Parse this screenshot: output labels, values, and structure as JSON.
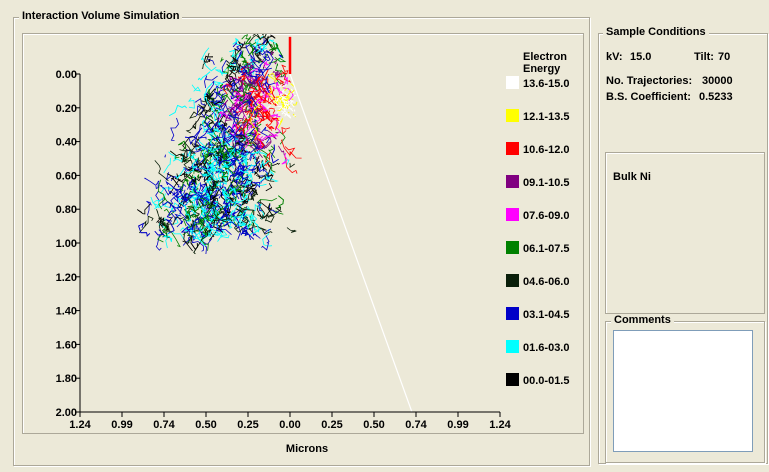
{
  "simulation": {
    "title": "Interaction Volume Simulation",
    "xlabel": "Microns",
    "legend_title_line1": "Electron",
    "legend_title_line2": "Energy"
  },
  "sample": {
    "title": "Sample Conditions",
    "kv_label": "kV:",
    "kv_value": "15.0",
    "tilt_label": "Tilt:",
    "tilt_value": "70",
    "trajectories_label": "No. Trajectories:",
    "trajectories_value": "30000",
    "bs_label": "B.S. Coefficient:",
    "bs_value": "0.5233"
  },
  "material": {
    "label": "Bulk Ni"
  },
  "comments": {
    "title": "Comments",
    "value": ""
  },
  "chart_data": {
    "type": "scatter",
    "title": "",
    "xlabel": "Microns",
    "ylabel": "",
    "x_ticks": [
      "1.24",
      "0.99",
      "0.74",
      "0.50",
      "0.25",
      "0.00",
      "0.25",
      "0.50",
      "0.74",
      "0.99",
      "1.24"
    ],
    "y_ticks": [
      "0.00",
      "0.20",
      "0.40",
      "0.60",
      "0.80",
      "1.00",
      "1.20",
      "1.40",
      "1.60",
      "1.80",
      "2.00"
    ],
    "xlim": [
      -1.24,
      1.24
    ],
    "ylim": [
      0,
      2.0
    ],
    "y_inverted": true,
    "grid": false,
    "legend_position": "right",
    "legend": [
      {
        "label": "13.6-15.0",
        "color": "#ffffff"
      },
      {
        "label": "12.1-13.5",
        "color": "#ffff00"
      },
      {
        "label": "10.6-12.0",
        "color": "#ff0000"
      },
      {
        "label": "09.1-10.5",
        "color": "#800080"
      },
      {
        "label": "07.6-09.0",
        "color": "#ff00ff"
      },
      {
        "label": "06.1-07.5",
        "color": "#008000"
      },
      {
        "label": "04.6-06.0",
        "color": "#0a1f0a"
      },
      {
        "label": "03.1-04.5",
        "color": "#0000c8"
      },
      {
        "label": "01.6-03.0",
        "color": "#00ffff"
      },
      {
        "label": "00.0-01.5",
        "color": "#000000"
      }
    ],
    "beam": {
      "x": 0.0,
      "y_top": -0.22,
      "y_bottom": 0.0,
      "color": "#ff0000"
    },
    "surface_line": {
      "x1": 0.0,
      "y1": 0.0,
      "x2": 0.72,
      "y2": 2.0,
      "color": "#ffffff"
    }
  }
}
